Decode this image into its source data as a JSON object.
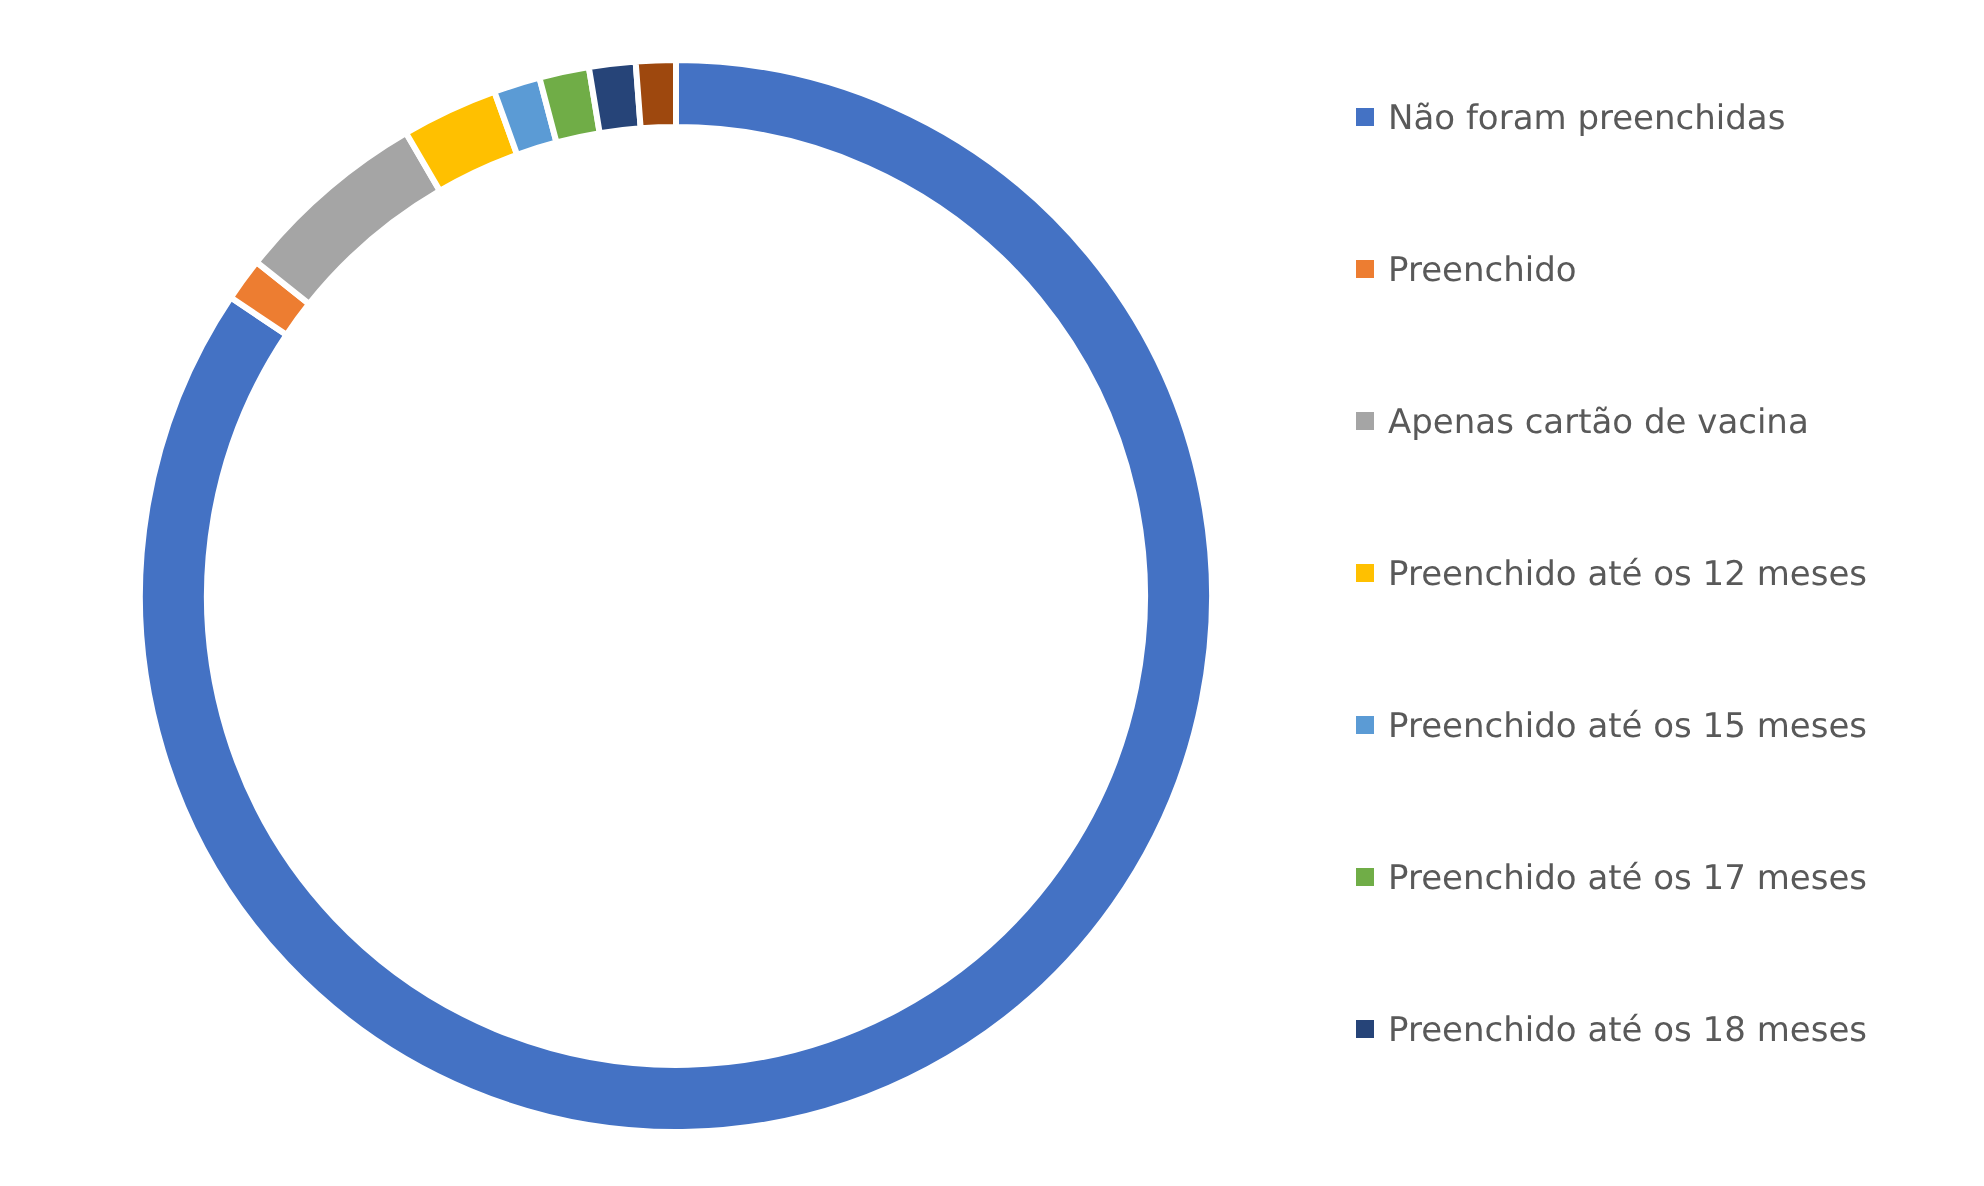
{
  "chart_data": {
    "type": "donut",
    "categories": [
      "Não foram preenchidas",
      "Preenchido",
      "Apenas cartão de vacina",
      "Preenchido até os 12 meses",
      "Preenchido até os 15 meses",
      "Preenchido até os 17 meses",
      "Preenchido até os 18 meses",
      null
    ],
    "values": [
      84.4,
      1.3,
      5.9,
      2.9,
      1.4,
      1.5,
      1.4,
      1.2
    ],
    "colors": [
      "#4472c4",
      "#ed7d31",
      "#a5a5a5",
      "#ffc000",
      "#5b9bd5",
      "#70ad47",
      "#264478",
      "#9e480e"
    ],
    "legend": "right"
  }
}
